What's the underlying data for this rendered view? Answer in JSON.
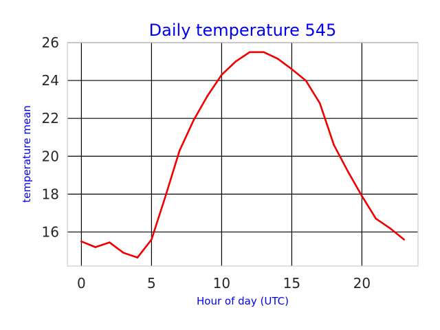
{
  "chart_data": {
    "type": "line",
    "title": "Daily temperature 545",
    "xlabel": "Hour of day (UTC)",
    "ylabel": "temperature mean",
    "x": [
      0,
      1,
      2,
      3,
      4,
      5,
      6,
      7,
      8,
      9,
      10,
      11,
      12,
      13,
      14,
      15,
      16,
      17,
      18,
      19,
      20,
      21,
      22,
      23
    ],
    "series": [
      {
        "values": [
          15.5,
          15.2,
          15.45,
          14.9,
          14.65,
          15.6,
          17.9,
          20.3,
          21.9,
          23.2,
          24.3,
          25.0,
          25.5,
          25.5,
          25.15,
          24.6,
          24.0,
          22.8,
          20.6,
          19.2,
          17.9,
          16.7,
          16.2,
          15.6
        ],
        "color": "#ee0000"
      }
    ],
    "xlim": [
      -1,
      24
    ],
    "ylim": [
      14.2,
      26
    ],
    "xticks": [
      0,
      5,
      10,
      15,
      20
    ],
    "yticks": [
      16,
      18,
      20,
      22,
      24,
      26
    ],
    "grid": true,
    "colors": {
      "title": "#0000ee",
      "axis_label": "#0000ee",
      "grid": "#000000",
      "tick_label": "#262626"
    }
  }
}
